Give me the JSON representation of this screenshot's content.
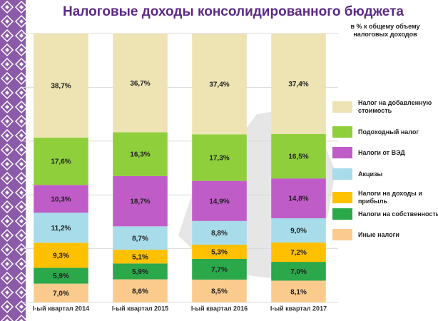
{
  "chart_data": {
    "type": "bar",
    "stacked": true,
    "title": "Налоговые доходы консолидированного бюджета",
    "subtitle": "в % к общему объему налоговых доходов",
    "categories": [
      "I-ый квартал 2014",
      "I-ый квартал 2015",
      "I-ый квартал 2016",
      "I-ый квартал 2017"
    ],
    "ylim": [
      0,
      100
    ],
    "yticks": [
      0,
      20,
      40,
      60,
      80,
      100
    ],
    "grid": true,
    "series": [
      {
        "name": "Иные налоги",
        "color": "#fbcb8e",
        "values": [
          7.0,
          8.6,
          8.5,
          8.1
        ],
        "value_labels": [
          "7,0%",
          "8,6%",
          "8,5%",
          "8,1%"
        ]
      },
      {
        "name": "Налоги на собственность",
        "color": "#2aa84a",
        "values": [
          5.9,
          5.9,
          7.7,
          7.0
        ],
        "value_labels": [
          "5,9%",
          "5,9%",
          "7,7%",
          "7,0%"
        ]
      },
      {
        "name": "Налоги на доходы и прибыль",
        "color": "#ffc000",
        "values": [
          9.3,
          5.1,
          5.3,
          7.2
        ],
        "value_labels": [
          "9,3%",
          "5,1%",
          "5,3%",
          "7,2%"
        ]
      },
      {
        "name": "Акцизы",
        "color": "#a8dcea",
        "values": [
          11.2,
          8.7,
          8.8,
          9.0
        ],
        "value_labels": [
          "11,2%",
          "8,7%",
          "8,8%",
          "9,0%"
        ]
      },
      {
        "name": "Налоги от ВЭД",
        "color": "#c05cc8",
        "values": [
          10.3,
          18.7,
          14.9,
          14.8
        ],
        "value_labels": [
          "10,3%",
          "18,7%",
          "14,9%",
          "14,8%"
        ]
      },
      {
        "name": "Подоходный налог",
        "color": "#8fcf3c",
        "values": [
          17.6,
          16.3,
          17.3,
          16.5
        ],
        "value_labels": [
          "17,6%",
          "16,3%",
          "17,3%",
          "16,5%"
        ]
      },
      {
        "name": "Налог на добавленную стоимость",
        "color": "#ede3b3",
        "values": [
          38.7,
          36.7,
          37.4,
          37.4
        ],
        "value_labels": [
          "38,7%",
          "36,7%",
          "37,4%",
          "37,4%"
        ]
      }
    ]
  }
}
